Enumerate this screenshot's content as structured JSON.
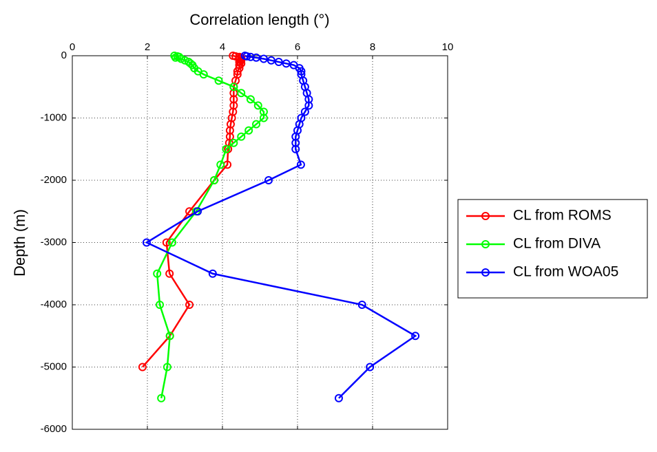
{
  "chart_data": {
    "type": "line",
    "title": "Correlation length (°)",
    "y_label": "Depth (m)",
    "y": [
      0,
      -10,
      -20,
      -30,
      -50,
      -75,
      -100,
      -125,
      -150,
      -200,
      -250,
      -300,
      -400,
      -500,
      -600,
      -700,
      -800,
      -900,
      -1000,
      -1100,
      -1200,
      -1300,
      -1400,
      -1500,
      -1750,
      -2000,
      -2500,
      -3000,
      -3500,
      -4000,
      -4500,
      -5000,
      -5500
    ],
    "series": [
      {
        "name": "CL from ROMS",
        "color": "#ff0000",
        "values": [
          4.28,
          4.35,
          4.45,
          4.5,
          4.45,
          4.5,
          4.45,
          4.5,
          4.45,
          4.45,
          4.4,
          4.4,
          4.35,
          4.3,
          4.3,
          4.3,
          4.3,
          4.28,
          4.25,
          4.22,
          4.2,
          4.2,
          4.18,
          4.15,
          4.13,
          3.78,
          3.12,
          2.51,
          2.59,
          3.12,
          2.6,
          1.87,
          null
        ]
      },
      {
        "name": "CL from DIVA",
        "color": "#00ff00",
        "values": [
          2.72,
          2.8,
          2.85,
          2.75,
          2.9,
          3.0,
          3.1,
          3.15,
          3.2,
          3.25,
          3.35,
          3.5,
          3.9,
          4.3,
          4.5,
          4.75,
          4.95,
          5.1,
          5.1,
          4.9,
          4.7,
          4.5,
          4.3,
          4.1,
          3.95,
          3.78,
          3.3,
          2.66,
          2.26,
          2.33,
          2.6,
          2.53,
          2.37
        ]
      },
      {
        "name": "CL from WOA05",
        "color": "#0000ff",
        "values": [
          4.6,
          4.65,
          4.75,
          4.9,
          5.1,
          5.3,
          5.5,
          5.7,
          5.9,
          6.05,
          6.1,
          6.1,
          6.15,
          6.2,
          6.25,
          6.3,
          6.3,
          6.2,
          6.1,
          6.05,
          6.0,
          5.95,
          5.95,
          5.95,
          6.09,
          5.23,
          3.34,
          1.98,
          3.74,
          7.72,
          9.14,
          7.93,
          7.1
        ]
      }
    ],
    "xlim": [
      0,
      10
    ],
    "xticks": [
      0,
      2,
      4,
      6,
      8,
      10
    ],
    "ylim": [
      -6000,
      0
    ],
    "yticks": [
      0,
      -1000,
      -2000,
      -3000,
      -4000,
      -5000,
      -6000
    ],
    "grid": true,
    "legend": "right"
  }
}
